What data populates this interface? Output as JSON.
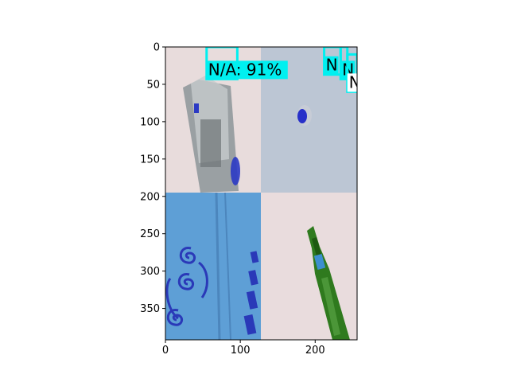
{
  "chart_data": {
    "type": "image",
    "title": "",
    "xlabel": "",
    "ylabel": "",
    "xlim": [
      0,
      256
    ],
    "ylim": [
      392,
      0
    ],
    "xticks": [
      "0",
      "100",
      "200"
    ],
    "yticks": [
      "0",
      "50",
      "100",
      "150",
      "200",
      "250",
      "300",
      "350"
    ],
    "image_tiles": [
      {
        "name": "tile-plastic-bottle",
        "content": "plastic bottle on pink background"
      },
      {
        "name": "tile-blue-cap",
        "content": "blue bottle cap on grey background"
      },
      {
        "name": "tile-blue-cardboard",
        "content": "blue cardboard with swirl print"
      },
      {
        "name": "tile-green-bottle",
        "content": "green glass bottle on pink background"
      }
    ],
    "detections": [
      {
        "label": "N/A: 91%",
        "x0": 55,
        "y0": 0,
        "x1": 96,
        "y1": 43
      },
      {
        "label": "N",
        "x0": 212,
        "y0": 0,
        "x1": 234,
        "y1": 37
      },
      {
        "label": "N",
        "x0": 234,
        "y0": 0,
        "x1": 243,
        "y1": 43
      },
      {
        "label": "N",
        "x0": 243,
        "y0": 10,
        "x1": 256,
        "y1": 60
      }
    ],
    "box_color": "#00f0f0"
  }
}
